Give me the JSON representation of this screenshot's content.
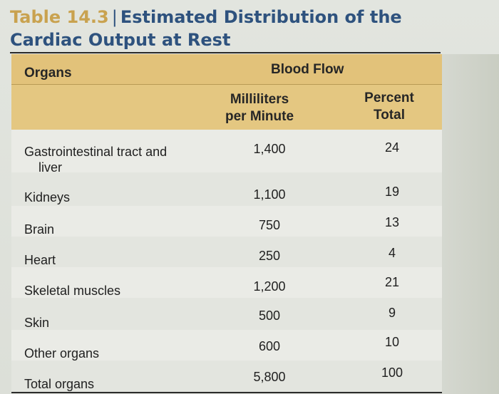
{
  "title": {
    "number": "Table 14.3",
    "separator": "|",
    "text_line1": "Estimated Distribution of the",
    "text_line2": "Cardiac Output at Rest"
  },
  "columns": {
    "organs": "Organs",
    "blood_flow": "Blood Flow",
    "ml_line1": "Milliliters",
    "ml_line2": "per Minute",
    "pct_line1": "Percent",
    "pct_line2": "Total"
  },
  "rows": [
    {
      "organ_line1": "Gastrointestinal tract and",
      "organ_line2": "liver",
      "ml": "1,400",
      "pct": "24"
    },
    {
      "organ_line1": "Kidneys",
      "organ_line2": "",
      "ml": "1,100",
      "pct": "19"
    },
    {
      "organ_line1": "Brain",
      "organ_line2": "",
      "ml": "750",
      "pct": "13"
    },
    {
      "organ_line1": "Heart",
      "organ_line2": "",
      "ml": "250",
      "pct": "4"
    },
    {
      "organ_line1": "Skeletal muscles",
      "organ_line2": "",
      "ml": "1,200",
      "pct": "21"
    },
    {
      "organ_line1": "Skin",
      "organ_line2": "",
      "ml": "500",
      "pct": "9"
    },
    {
      "organ_line1": "Other organs",
      "organ_line2": "",
      "ml": "600",
      "pct": "10"
    },
    {
      "organ_line1": "Total organs",
      "organ_line2": "",
      "ml": "5,800",
      "pct": "100"
    }
  ]
}
